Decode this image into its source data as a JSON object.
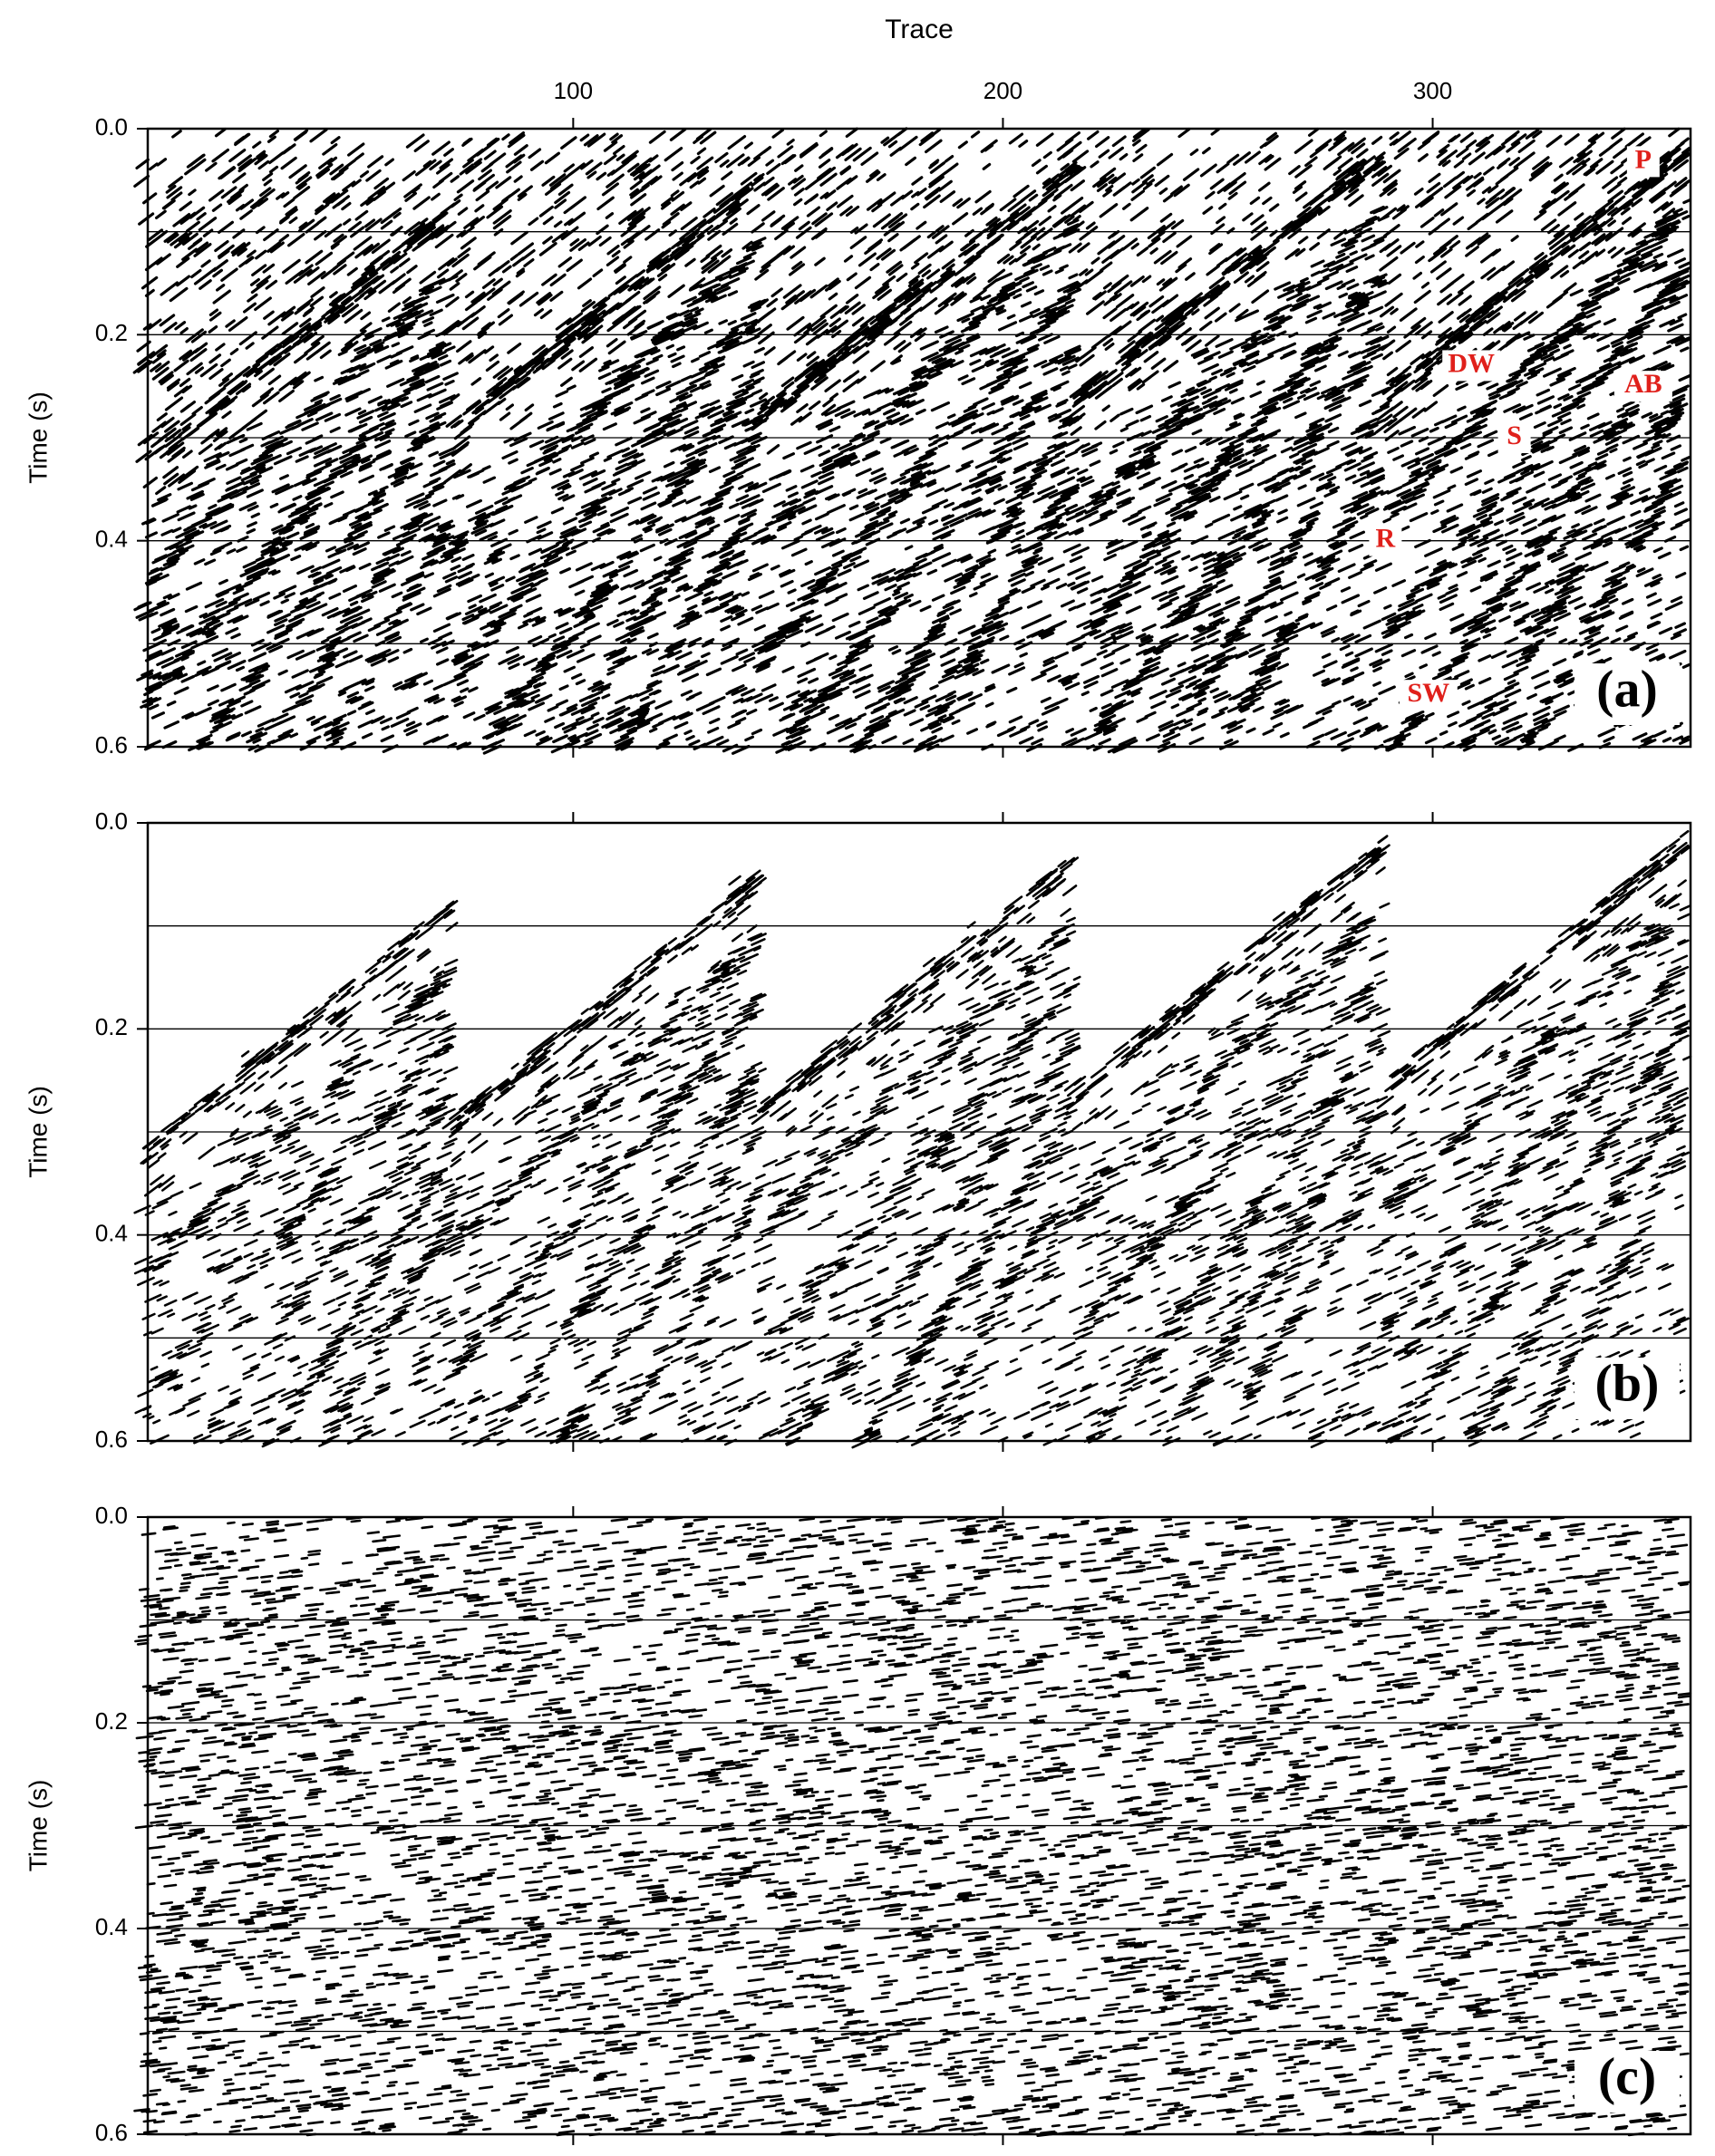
{
  "chart_data": [
    {
      "type": "seismic",
      "xlabel": "Trace",
      "ylabel": "Time (s)",
      "panel_label": "(a)",
      "xlim": [
        1,
        360
      ],
      "xticks": [
        100,
        200,
        300
      ],
      "ylim": [
        0,
        0.6
      ],
      "yticks": [
        {
          "value": 0,
          "label": "0.0"
        },
        0.2,
        0.4,
        0.6
      ],
      "ygrid": [
        0.1,
        0.2,
        0.3,
        0.4,
        0.5
      ],
      "annotation_color": "#e0201b",
      "annotations": [
        {
          "text": "P",
          "x": 349,
          "y": 0.032
        },
        {
          "text": "DW",
          "x": 309,
          "y": 0.23
        },
        {
          "text": "AB",
          "x": 349,
          "y": 0.25
        },
        {
          "text": "S",
          "x": 319,
          "y": 0.3
        },
        {
          "text": "R",
          "x": 289,
          "y": 0.4
        },
        {
          "text": "SW",
          "x": 299,
          "y": 0.55
        }
      ]
    },
    {
      "type": "seismic",
      "ylabel": "Time (s)",
      "panel_label": "(b)",
      "xlim": [
        1,
        360
      ],
      "xticks": [
        100,
        200,
        300
      ],
      "ylim": [
        0,
        0.6
      ],
      "yticks": [
        {
          "value": 0,
          "label": "0.0"
        },
        0.2,
        0.4,
        0.6
      ],
      "ygrid": [
        0.1,
        0.2,
        0.3,
        0.4,
        0.5
      ]
    },
    {
      "type": "seismic",
      "ylabel": "Time (s)",
      "panel_label": "(c)",
      "xlim": [
        1,
        360
      ],
      "xticks": [
        100,
        200,
        300
      ],
      "ylim": [
        0,
        0.6
      ],
      "yticks": [
        {
          "value": 0,
          "label": "0.0"
        },
        0.2,
        0.4,
        0.6
      ],
      "ygrid": [
        0.1,
        0.2,
        0.3,
        0.4,
        0.5
      ]
    }
  ]
}
